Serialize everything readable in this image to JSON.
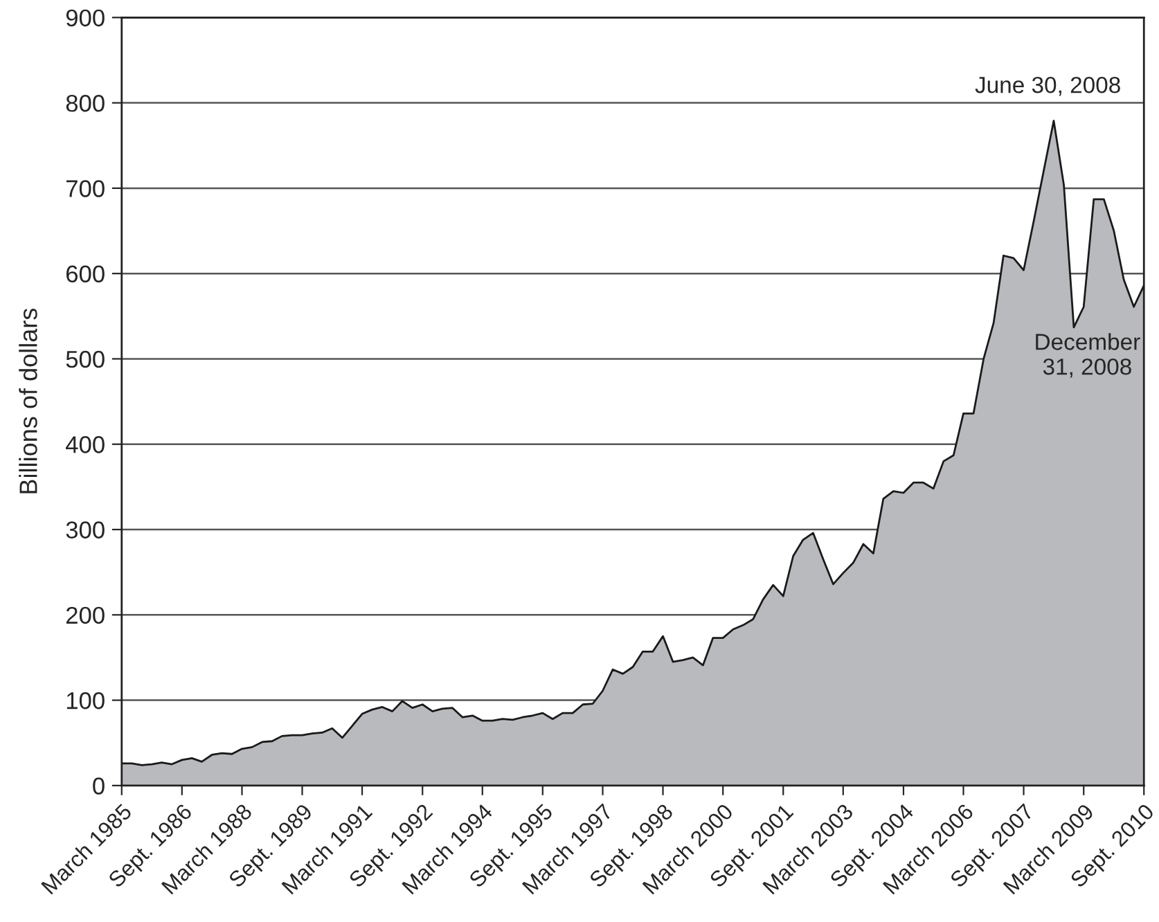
{
  "chart_data": {
    "type": "area",
    "ylabel": "Billions of dollars",
    "x": [
      "1985-03",
      "1985-06",
      "1985-09",
      "1985-12",
      "1986-03",
      "1986-06",
      "1986-09",
      "1986-12",
      "1987-03",
      "1987-06",
      "1987-09",
      "1987-12",
      "1988-03",
      "1988-06",
      "1988-09",
      "1988-12",
      "1989-03",
      "1989-06",
      "1989-09",
      "1989-12",
      "1990-03",
      "1990-06",
      "1990-09",
      "1990-12",
      "1991-03",
      "1991-06",
      "1991-09",
      "1991-12",
      "1992-03",
      "1992-06",
      "1992-09",
      "1992-12",
      "1993-03",
      "1993-06",
      "1993-09",
      "1993-12",
      "1994-03",
      "1994-06",
      "1994-09",
      "1994-12",
      "1995-03",
      "1995-06",
      "1995-09",
      "1995-12",
      "1996-03",
      "1996-06",
      "1996-09",
      "1996-12",
      "1997-03",
      "1997-06",
      "1997-09",
      "1997-12",
      "1998-03",
      "1998-06",
      "1998-09",
      "1998-12",
      "1999-03",
      "1999-06",
      "1999-09",
      "1999-12",
      "2000-03",
      "2000-06",
      "2000-09",
      "2000-12",
      "2001-03",
      "2001-06",
      "2001-09",
      "2001-12",
      "2002-03",
      "2002-06",
      "2002-09",
      "2002-12",
      "2003-03",
      "2003-06",
      "2003-09",
      "2003-12",
      "2004-03",
      "2004-06",
      "2004-09",
      "2004-12",
      "2005-03",
      "2005-06",
      "2005-09",
      "2005-12",
      "2006-03",
      "2006-06",
      "2006-09",
      "2006-12",
      "2007-03",
      "2007-06",
      "2007-09",
      "2007-12",
      "2008-03",
      "2008-06",
      "2008-09",
      "2008-12",
      "2009-03",
      "2009-06",
      "2009-09",
      "2009-12",
      "2010-03",
      "2010-06",
      "2010-09"
    ],
    "series": [
      {
        "color": "#b9babd",
        "values": [
          26,
          26,
          24,
          25,
          27,
          25,
          30,
          32,
          28,
          36,
          38,
          37,
          43,
          45,
          51,
          52,
          58,
          59,
          59,
          61,
          62,
          67,
          56,
          70,
          84,
          89,
          92,
          87,
          99,
          91,
          95,
          87,
          90,
          91,
          80,
          82,
          76,
          76,
          78,
          77,
          80,
          82,
          85,
          78,
          85,
          85,
          95,
          96,
          111,
          136,
          131,
          139,
          157,
          157,
          175,
          145,
          147,
          150,
          141,
          173,
          173,
          183,
          188,
          195,
          218,
          235,
          222,
          269,
          288,
          296,
          265,
          236,
          249,
          261,
          283,
          272,
          336,
          345,
          343,
          355,
          355,
          348,
          380,
          387,
          436,
          436,
          500,
          542,
          621,
          618,
          604,
          661,
          720,
          779,
          704,
          537,
          561,
          687,
          687,
          650,
          593,
          561,
          586
        ]
      }
    ],
    "xlim": [
      "1985-03",
      "2010-09"
    ],
    "ylim": [
      0,
      900
    ],
    "xticks": [
      {
        "value": "1985-03",
        "label": "March 1985"
      },
      {
        "value": "1986-09",
        "label": "Sept. 1986"
      },
      {
        "value": "1988-03",
        "label": "March 1988"
      },
      {
        "value": "1989-09",
        "label": "Sept. 1989"
      },
      {
        "value": "1991-03",
        "label": "March 1991"
      },
      {
        "value": "1992-09",
        "label": "Sept. 1992"
      },
      {
        "value": "1994-03",
        "label": "March 1994"
      },
      {
        "value": "1995-09",
        "label": "Sept. 1995"
      },
      {
        "value": "1997-03",
        "label": "March 1997"
      },
      {
        "value": "1998-09",
        "label": "Sept. 1998"
      },
      {
        "value": "2000-03",
        "label": "March 2000"
      },
      {
        "value": "2001-09",
        "label": "Sept. 2001"
      },
      {
        "value": "2003-03",
        "label": "March 2003"
      },
      {
        "value": "2004-09",
        "label": "Sept. 2004"
      },
      {
        "value": "2006-03",
        "label": "March 2006"
      },
      {
        "value": "2007-09",
        "label": "Sept. 2007"
      },
      {
        "value": "2009-03",
        "label": "March 2009"
      },
      {
        "value": "2010-09",
        "label": "Sept. 2010"
      }
    ],
    "yticks": [
      0,
      100,
      200,
      300,
      400,
      500,
      600,
      700,
      800,
      900
    ],
    "grid": "y",
    "annotations": [
      {
        "text": "June 30, 2008",
        "x": "2008-06",
        "y": 779
      },
      {
        "text": "December\n31, 2008",
        "x": "2008-12",
        "y": 537
      }
    ]
  }
}
